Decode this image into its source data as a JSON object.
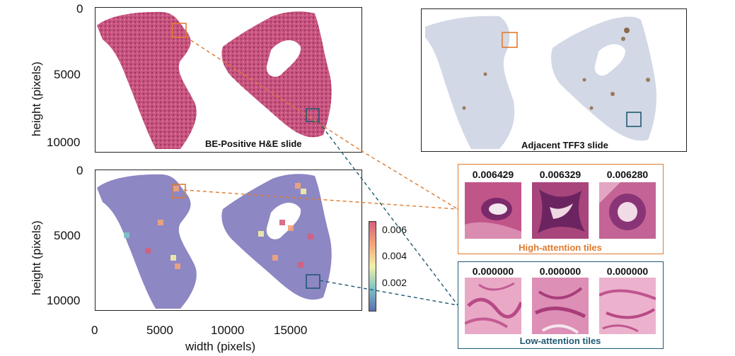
{
  "top_left_panel": {
    "caption": "BE-Positive H&E slide",
    "y_ticks": [
      "0",
      "5000",
      "10000"
    ],
    "y_label": "height (pixels)"
  },
  "top_right_panel": {
    "caption": "Adjacent TFF3 slide"
  },
  "bottom_left_panel": {
    "y_ticks": [
      "0",
      "5000",
      "10000"
    ],
    "y_label": "height (pixels)",
    "x_ticks": [
      "0",
      "5000",
      "10000",
      "15000"
    ],
    "x_label": "width (pixels)"
  },
  "colorbar": {
    "ticks": [
      "0.006",
      "0.004",
      "0.002"
    ],
    "colors": [
      "#5a6fb0",
      "#7fc3c8",
      "#f3f0a8",
      "#f4a47a",
      "#d6607c"
    ]
  },
  "high_attention": {
    "label": "High-attention tiles",
    "scores": [
      "0.006429",
      "0.006329",
      "0.006280"
    ],
    "color": "#e07b2f"
  },
  "low_attention": {
    "label": "Low-attention tiles",
    "scores": [
      "0.000000",
      "0.000000",
      "0.000000"
    ],
    "color": "#1f5a73"
  },
  "colors": {
    "he_tissue": "#c8557f",
    "tff3_tissue": "#d3d8e6",
    "attention_tissue": "#8d87c4"
  }
}
